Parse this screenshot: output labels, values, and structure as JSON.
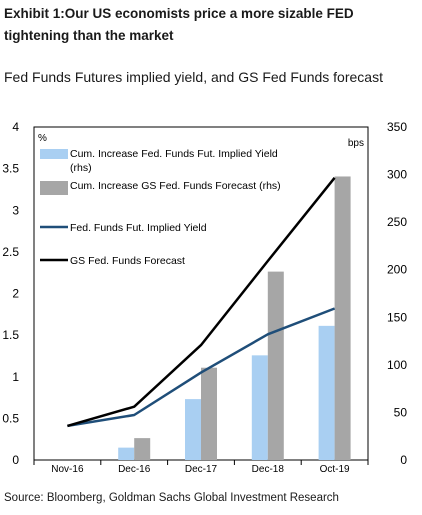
{
  "header": {
    "exhibit_title": "Exhibit 1:Our US economists price a more sizable FED tightening than the market",
    "subtitle": "Fed Funds Futures implied yield, and GS Fed Funds forecast"
  },
  "footer": {
    "source": "Source: Bloomberg, Goldman Sachs Global Investment Research"
  },
  "chart_data": {
    "type": "bar",
    "categories": [
      "Nov-16",
      "Dec-16",
      "Dec-17",
      "Dec-18",
      "Oct-19"
    ],
    "left_axis": {
      "unit": "%",
      "min": 0,
      "max": 4,
      "ticks": [
        "0",
        "0.5",
        "1",
        "1.5",
        "2",
        "2.5",
        "3",
        "3.5",
        "4"
      ]
    },
    "right_axis": {
      "unit": "bps",
      "min": 0,
      "max": 350,
      "ticks": [
        "0",
        "50",
        "100",
        "150",
        "200",
        "250",
        "300",
        "350"
      ]
    },
    "series": [
      {
        "name": "Cum. Increase Fed. Funds Fut. Implied Yield (rhs)",
        "type": "bar",
        "axis": "right",
        "color": "#a9cff2",
        "values": [
          0,
          13,
          64,
          110,
          141
        ]
      },
      {
        "name": "Cum. Increase GS Fed. Funds Forecast (rhs)",
        "type": "bar",
        "axis": "right",
        "color": "#a6a6a6",
        "values": [
          0,
          23,
          97,
          198,
          298
        ]
      },
      {
        "name": "Fed. Funds Fut. Implied Yield",
        "type": "line",
        "axis": "left",
        "color": "#1f4e79",
        "values": [
          0.41,
          0.54,
          1.05,
          1.51,
          1.82
        ]
      },
      {
        "name": "GS Fed. Funds Forecast",
        "type": "line",
        "axis": "left",
        "color": "#000000",
        "values": [
          0.41,
          0.64,
          1.38,
          2.39,
          3.39
        ]
      }
    ],
    "legend_position": "top-left, inside plot",
    "grid": false
  }
}
